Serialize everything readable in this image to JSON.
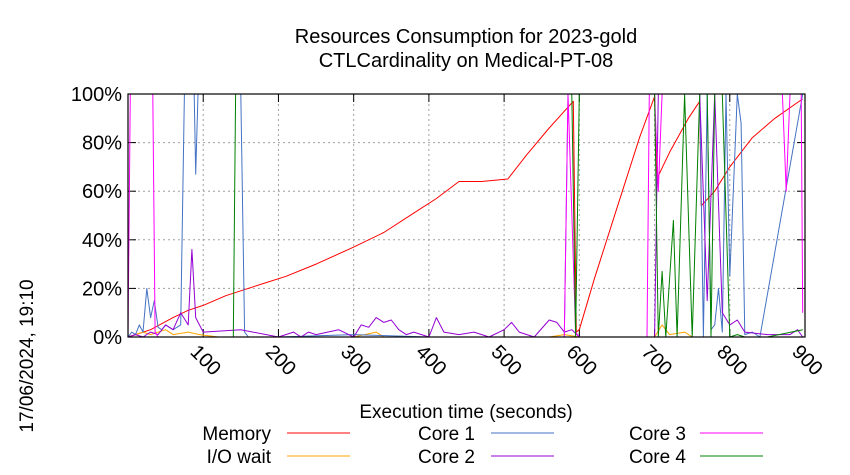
{
  "chart_data": {
    "type": "line",
    "title_lines": [
      "Resources Consumption for 2023-gold",
      "CTLCardinality on Medical-PT-08"
    ],
    "xlabel": "Execution time (seconds)",
    "ylabel": "",
    "timestamp": "17/06/2024, 19:10",
    "xlim": [
      0,
      900
    ],
    "ylim": [
      0,
      100
    ],
    "x_ticks": [
      100,
      200,
      300,
      400,
      500,
      600,
      700,
      800,
      900
    ],
    "x_tick_labels": [
      "100",
      "200",
      "300",
      "400",
      "500",
      "600",
      "700",
      "800",
      "900"
    ],
    "y_ticks": [
      0,
      20,
      40,
      60,
      80,
      100
    ],
    "y_tick_labels": [
      "0%",
      "20%",
      "40%",
      "60%",
      "80%",
      "100%"
    ],
    "grid": true,
    "legend_position": "bottom",
    "series": [
      {
        "name": "Memory",
        "color": "#ff0000",
        "points": [
          [
            0,
            0
          ],
          [
            10,
            1
          ],
          [
            30,
            3
          ],
          [
            60,
            8
          ],
          [
            80,
            11
          ],
          [
            100,
            13
          ],
          [
            130,
            17
          ],
          [
            150,
            19
          ],
          [
            180,
            22
          ],
          [
            210,
            25
          ],
          [
            250,
            30
          ],
          [
            300,
            37
          ],
          [
            340,
            43
          ],
          [
            380,
            51
          ],
          [
            410,
            57
          ],
          [
            440,
            64
          ],
          [
            470,
            64
          ],
          [
            505,
            65
          ],
          [
            530,
            75
          ],
          [
            560,
            86
          ],
          [
            592,
            97
          ],
          [
            596,
            2
          ],
          [
            600,
            3
          ],
          [
            620,
            24
          ],
          [
            650,
            53
          ],
          [
            680,
            82
          ],
          [
            700,
            99
          ],
          [
            703,
            65
          ],
          [
            720,
            76
          ],
          [
            745,
            90
          ],
          [
            760,
            97
          ],
          [
            762,
            54
          ],
          [
            780,
            60
          ],
          [
            800,
            70
          ],
          [
            830,
            82
          ],
          [
            860,
            90
          ],
          [
            897,
            98
          ]
        ]
      },
      {
        "name": "I/O wait",
        "color": "#ffa500",
        "points": [
          [
            0,
            0
          ],
          [
            10,
            1
          ],
          [
            20,
            2
          ],
          [
            30,
            1
          ],
          [
            50,
            3
          ],
          [
            60,
            1
          ],
          [
            80,
            2
          ],
          [
            95,
            1
          ],
          [
            120,
            0
          ],
          [
            200,
            0
          ],
          [
            300,
            0
          ],
          [
            330,
            2
          ],
          [
            340,
            0
          ],
          [
            400,
            0
          ],
          [
            560,
            0
          ],
          [
            580,
            1
          ],
          [
            600,
            0
          ],
          [
            700,
            0
          ],
          [
            710,
            5
          ],
          [
            720,
            1
          ],
          [
            740,
            2
          ],
          [
            750,
            0
          ],
          [
            800,
            0
          ],
          [
            897,
            0
          ]
        ]
      },
      {
        "name": "Core 1",
        "color": "#4472c4",
        "points": [
          [
            0,
            0
          ],
          [
            5,
            2
          ],
          [
            10,
            1
          ],
          [
            15,
            5
          ],
          [
            20,
            2
          ],
          [
            25,
            20
          ],
          [
            30,
            8
          ],
          [
            35,
            15
          ],
          [
            40,
            4
          ],
          [
            45,
            3
          ],
          [
            50,
            5
          ],
          [
            60,
            3
          ],
          [
            70,
            5
          ],
          [
            75,
            100
          ],
          [
            88,
            100
          ],
          [
            90,
            67
          ],
          [
            93,
            100
          ],
          [
            95,
            100
          ],
          [
            100,
            100
          ],
          [
            150,
            100
          ],
          [
            155,
            2
          ],
          [
            160,
            0
          ],
          [
            200,
            0
          ],
          [
            300,
            1
          ],
          [
            400,
            0
          ],
          [
            500,
            0
          ],
          [
            580,
            0
          ],
          [
            585,
            100
          ],
          [
            600,
            100
          ],
          [
            700,
            100
          ],
          [
            720,
            100
          ],
          [
            760,
            100
          ],
          [
            765,
            0
          ],
          [
            770,
            100
          ],
          [
            775,
            3
          ],
          [
            780,
            5
          ],
          [
            785,
            20
          ],
          [
            790,
            2
          ],
          [
            795,
            100
          ],
          [
            800,
            25
          ],
          [
            810,
            100
          ],
          [
            815,
            88
          ],
          [
            820,
            1
          ],
          [
            830,
            2
          ],
          [
            840,
            0
          ],
          [
            897,
            100
          ]
        ]
      },
      {
        "name": "Core 2",
        "color": "#9400d3",
        "points": [
          [
            0,
            0
          ],
          [
            10,
            1
          ],
          [
            20,
            0
          ],
          [
            30,
            2
          ],
          [
            40,
            1
          ],
          [
            50,
            5
          ],
          [
            60,
            3
          ],
          [
            70,
            10
          ],
          [
            80,
            5
          ],
          [
            85,
            36
          ],
          [
            90,
            8
          ],
          [
            100,
            2
          ],
          [
            150,
            3
          ],
          [
            200,
            0
          ],
          [
            220,
            2
          ],
          [
            230,
            0
          ],
          [
            240,
            2
          ],
          [
            250,
            1
          ],
          [
            280,
            3
          ],
          [
            300,
            0
          ],
          [
            310,
            5
          ],
          [
            320,
            4
          ],
          [
            330,
            8
          ],
          [
            340,
            6
          ],
          [
            350,
            7
          ],
          [
            360,
            3
          ],
          [
            370,
            1
          ],
          [
            380,
            2
          ],
          [
            400,
            0
          ],
          [
            410,
            8
          ],
          [
            420,
            2
          ],
          [
            440,
            1
          ],
          [
            460,
            2
          ],
          [
            480,
            0
          ],
          [
            500,
            3
          ],
          [
            510,
            6
          ],
          [
            520,
            2
          ],
          [
            540,
            0
          ],
          [
            560,
            7
          ],
          [
            570,
            6
          ],
          [
            580,
            2
          ],
          [
            590,
            3
          ],
          [
            600,
            0
          ],
          [
            700,
            0
          ],
          [
            705,
            100
          ],
          [
            710,
            100
          ],
          [
            720,
            100
          ],
          [
            735,
            100
          ],
          [
            745,
            100
          ],
          [
            760,
            100
          ],
          [
            770,
            15
          ],
          [
            780,
            100
          ],
          [
            790,
            10
          ],
          [
            800,
            5
          ],
          [
            810,
            7
          ],
          [
            820,
            2
          ],
          [
            850,
            1
          ],
          [
            880,
            1
          ],
          [
            890,
            3
          ],
          [
            897,
            0
          ]
        ]
      },
      {
        "name": "Core 3",
        "color": "#ff00ff",
        "points": [
          [
            0,
            0
          ],
          [
            3,
            100
          ],
          [
            30,
            100
          ],
          [
            33,
            100
          ],
          [
            36,
            2
          ],
          [
            40,
            0
          ],
          [
            100,
            0
          ],
          [
            200,
            0
          ],
          [
            300,
            0
          ],
          [
            400,
            0
          ],
          [
            500,
            0
          ],
          [
            580,
            0
          ],
          [
            585,
            100
          ],
          [
            595,
            2
          ],
          [
            600,
            0
          ],
          [
            690,
            0
          ],
          [
            693,
            100
          ],
          [
            700,
            100
          ],
          [
            705,
            60
          ],
          [
            710,
            100
          ],
          [
            720,
            100
          ],
          [
            740,
            100
          ],
          [
            750,
            100
          ],
          [
            760,
            100
          ],
          [
            770,
            100
          ],
          [
            780,
            100
          ],
          [
            790,
            100
          ],
          [
            800,
            100
          ],
          [
            810,
            100
          ],
          [
            820,
            100
          ],
          [
            830,
            100
          ],
          [
            840,
            100
          ],
          [
            850,
            100
          ],
          [
            860,
            100
          ],
          [
            870,
            100
          ],
          [
            875,
            60
          ],
          [
            880,
            100
          ],
          [
            895,
            100
          ],
          [
            897,
            10
          ]
        ]
      },
      {
        "name": "Core 4",
        "color": "#008000",
        "points": [
          [
            0,
            0
          ],
          [
            140,
            0
          ],
          [
            143,
            100
          ],
          [
            150,
            100
          ],
          [
            160,
            100
          ],
          [
            200,
            100
          ],
          [
            300,
            100
          ],
          [
            400,
            100
          ],
          [
            500,
            100
          ],
          [
            580,
            100
          ],
          [
            590,
            100
          ],
          [
            595,
            0
          ],
          [
            600,
            100
          ],
          [
            700,
            100
          ],
          [
            705,
            0
          ],
          [
            710,
            27
          ],
          [
            715,
            0
          ],
          [
            725,
            48
          ],
          [
            730,
            0
          ],
          [
            740,
            100
          ],
          [
            750,
            0
          ],
          [
            760,
            100
          ],
          [
            770,
            100
          ],
          [
            775,
            0
          ],
          [
            780,
            100
          ],
          [
            790,
            100
          ],
          [
            800,
            0
          ],
          [
            810,
            1
          ],
          [
            820,
            0
          ],
          [
            850,
            0
          ],
          [
            897,
            3
          ]
        ]
      }
    ]
  }
}
